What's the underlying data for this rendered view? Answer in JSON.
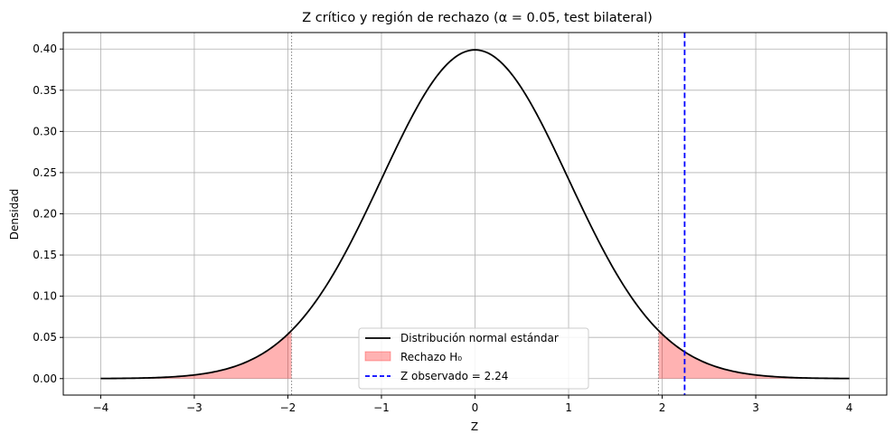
{
  "chart_data": {
    "type": "line",
    "title": "Z crítico y región de rechazo (α = 0.05, test bilateral)",
    "xlabel": "Z",
    "ylabel": "Densidad",
    "xlim": [
      -4.4,
      4.4
    ],
    "ylim": [
      -0.02,
      0.42
    ],
    "xticks": [
      -4,
      -3,
      -2,
      -1,
      0,
      1,
      2,
      3,
      4
    ],
    "xtick_labels": [
      "−4",
      "−3",
      "−2",
      "−1",
      "0",
      "1",
      "2",
      "3",
      "4"
    ],
    "yticks": [
      0.0,
      0.05,
      0.1,
      0.15,
      0.2,
      0.25,
      0.3,
      0.35,
      0.4
    ],
    "ytick_labels": [
      "0.00",
      "0.05",
      "0.10",
      "0.15",
      "0.20",
      "0.25",
      "0.30",
      "0.35",
      "0.40"
    ],
    "grid": true,
    "legend_position": "bottom-center",
    "curve": {
      "name": "Distribución normal estándar",
      "function": "standard-normal-pdf",
      "x_range": [
        -4,
        4
      ],
      "color": "#000000"
    },
    "rejection_region": {
      "name": "Rechazo H₀",
      "z_critical": 1.96,
      "tails": "two-sided",
      "color": "#ff0000",
      "opacity": 0.3
    },
    "critical_lines": {
      "values": [
        -1.96,
        1.96
      ],
      "color": "#808080",
      "style": "dotted"
    },
    "observed": {
      "name": "Z observado = 2.24",
      "value": 2.24,
      "color": "#0000ff",
      "style": "dashed"
    }
  }
}
